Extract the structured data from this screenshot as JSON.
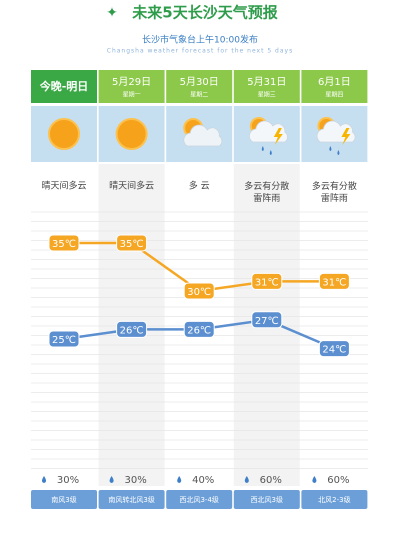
{
  "chart_data": {
    "type": "line",
    "title": "未来5天长沙天气预报",
    "subtitle": "长沙市气象台上午10:00发布",
    "subtitle_en": "Changsha weather forecast for the next 5 days",
    "categories": [
      "今晚-明日",
      "5月29日",
      "5月30日",
      "5月31日",
      "6月1日"
    ],
    "weekdays": [
      null,
      "星期一",
      "星期二",
      "星期三",
      "星期四"
    ],
    "conditions": [
      "晴天间多云",
      "晴天间多云",
      "多 云",
      "多云有分散雷阵雨",
      "多云有分散雷阵雨"
    ],
    "series": [
      {
        "color": "#f5a623",
        "values": [
          35,
          35,
          30,
          31,
          31
        ],
        "value_labels": [
          "35℃",
          "35℃",
          "30℃",
          "31℃",
          "31℃"
        ]
      },
      {
        "color": "#5b8fd0",
        "values": [
          25,
          26,
          26,
          27,
          24
        ],
        "value_labels": [
          "25℃",
          "26℃",
          "26℃",
          "27℃",
          "24℃"
        ]
      }
    ],
    "precipitation": {
      "values": [
        30,
        30,
        40,
        60,
        60
      ],
      "value_labels": [
        "30%",
        "30%",
        "40%",
        "60%",
        "60%"
      ]
    },
    "winds": [
      "南风3级",
      "南风转北风3级",
      "西北风3-4级",
      "西北风3级",
      "北风2-3级"
    ]
  }
}
